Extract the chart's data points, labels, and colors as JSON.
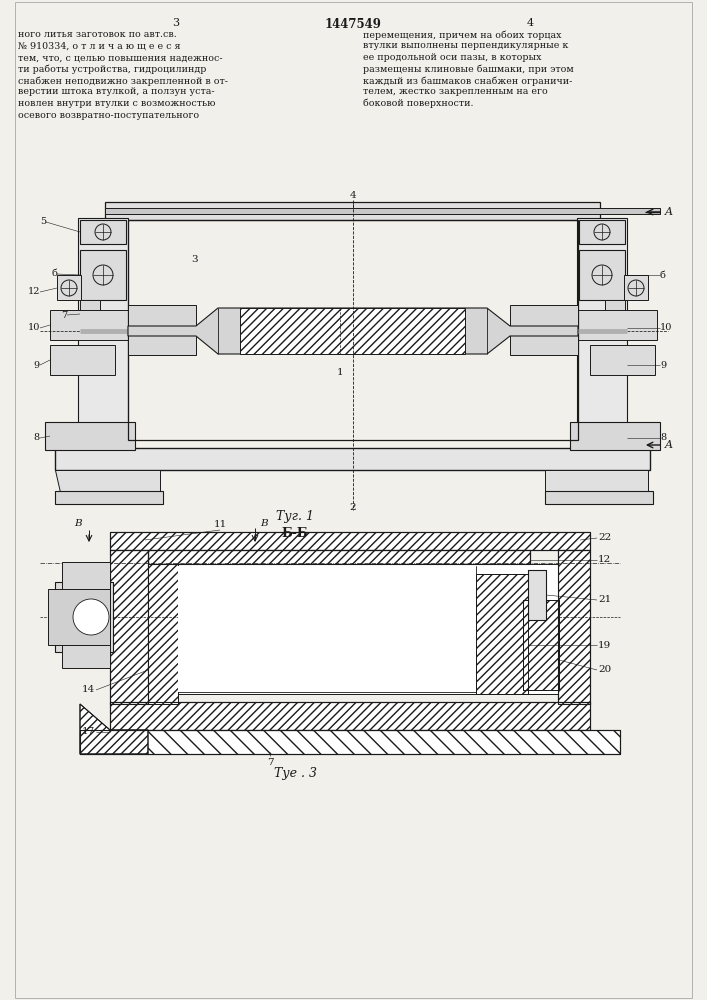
{
  "bg": "#f2f0eb",
  "lc": "#1a1a1a",
  "page_left": "3",
  "page_center": "1447549",
  "page_right": "4",
  "text_left": "ного литья заготовок по авт.св.\n№ 910334, о т л и ч а ю щ е е с я\nтем, что, с целью повышения надежнос-\nти работы устройства, гидроцилиндр\nснабжен неподвижно закрепленной в от-\nверстии штока втулкой, а ползун уста-\nновлен внутри втулки с возможностью\nосевого возвратно-поступательного",
  "text_right": "перемещения, причем на обоих торцах\nвтулки выполнены перпендикулярные к\nее продольной оси пазы, в которых\nразмещены клиновые башмаки, при этом\nкаждый из башмаков снабжен ограничи-\nтелем, жестко закрепленным на его\nбоковой поверхности.",
  "fig1_cap": "Τуг. 1",
  "fig3_cap": "Τуе . 3",
  "bb_label": "Б-Б"
}
